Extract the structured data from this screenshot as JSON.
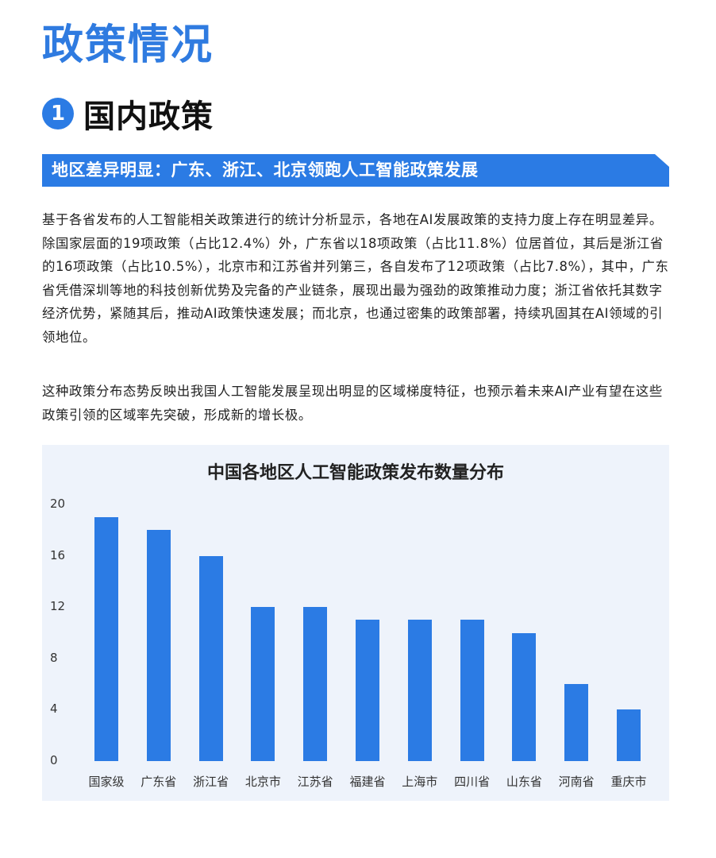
{
  "page": {
    "title": "政策情况",
    "section": {
      "number": "1",
      "title": "国内政策"
    },
    "banner": "地区差异明显：广东、浙江、北京领跑人工智能政策发展",
    "paragraphs": [
      "基于各省发布的人工智能相关政策进行的统计分析显示，各地在AI发展政策的支持力度上存在明显差异。除国家层面的19项政策（占比12.4%）外，广东省以18项政策（占比11.8%）位居首位，其后是浙江省的16项政策（占比10.5%），北京市和江苏省并列第三，各自发布了12项政策（占比7.8%），其中，广东省凭借深圳等地的科技创新优势及完备的产业链条，展现出最为强劲的政策推动力度；浙江省依托其数字经济优势，紧随其后，推动AI政策快速发展；而北京，也通过密集的政策部署，持续巩固其在AI领域的引领地位。",
      "这种政策分布态势反映出我国人工智能发展呈现出明显的区域梯度特征，也预示着未来AI产业有望在这些政策引领的区域率先突破，形成新的增长极。"
    ]
  },
  "chart_data": {
    "type": "bar",
    "title": "中国各地区人工智能政策发布数量分布",
    "categories": [
      "国家级",
      "广东省",
      "浙江省",
      "北京市",
      "江苏省",
      "福建省",
      "上海市",
      "四川省",
      "山东省",
      "河南省",
      "重庆市"
    ],
    "values": [
      19,
      18,
      16,
      12,
      12,
      11,
      11,
      11,
      10,
      6,
      4
    ],
    "xlabel": "",
    "ylabel": "",
    "ylim": [
      0,
      20
    ],
    "yticks": [
      "20",
      "16",
      "12",
      "8",
      "4",
      "0"
    ],
    "grid": false,
    "legend": "none",
    "bar_color": "#2b7be4"
  }
}
